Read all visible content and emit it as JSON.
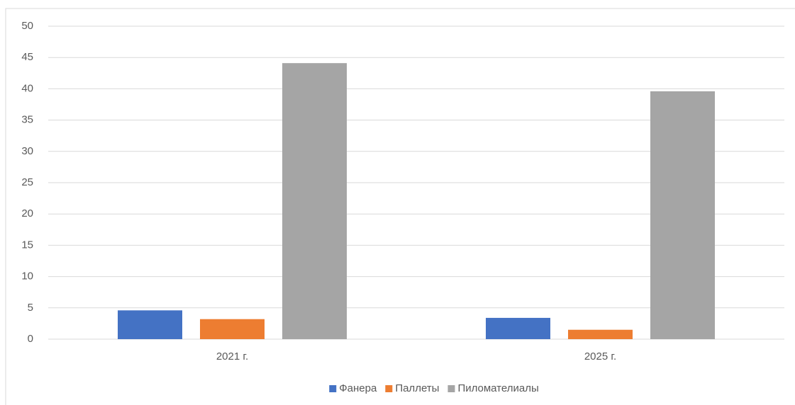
{
  "chart_data": {
    "type": "bar",
    "categories": [
      "2021 г.",
      "2025 г."
    ],
    "series": [
      {
        "name": "Фанера",
        "color": "#4472c4",
        "values": [
          4.6,
          3.4
        ]
      },
      {
        "name": "Паллеты",
        "color": "#ed7d31",
        "values": [
          3.2,
          1.5
        ]
      },
      {
        "name": "Пиломателиалы",
        "color": "#a5a5a5",
        "values": [
          44.1,
          39.6
        ]
      }
    ],
    "ylim": [
      0,
      50
    ],
    "yticks": [
      0,
      5,
      10,
      15,
      20,
      25,
      30,
      35,
      40,
      45,
      50
    ],
    "grid": true,
    "legend": "bottom"
  }
}
